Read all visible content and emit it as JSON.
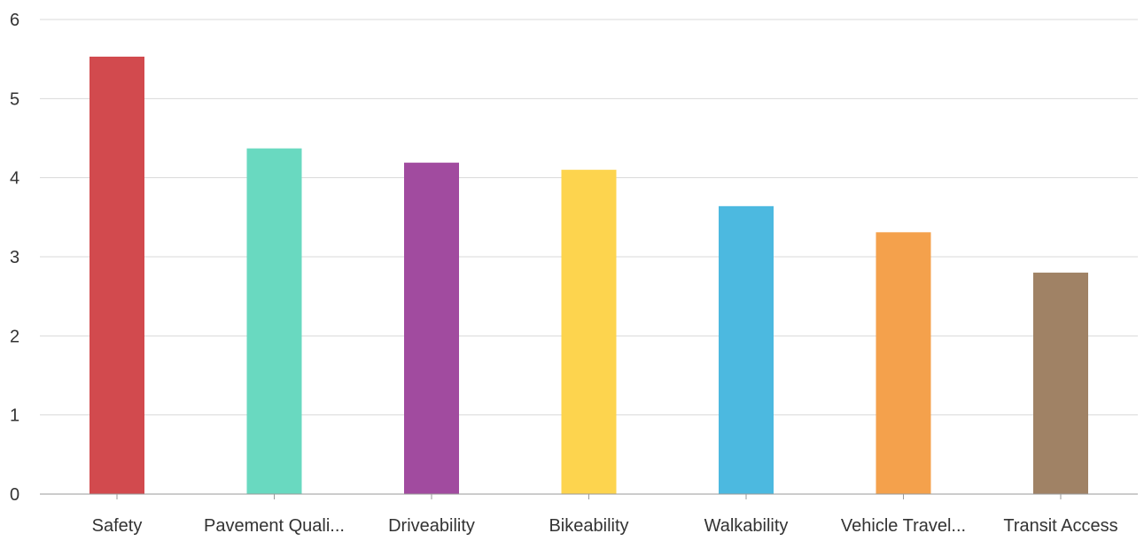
{
  "chart_data": {
    "type": "bar",
    "title": "",
    "xlabel": "",
    "ylabel": "",
    "categories": [
      "Safety",
      "Pavement Quali...",
      "Driveability",
      "Bikeability",
      "Walkability",
      "Vehicle Travel...",
      "Transit Access"
    ],
    "values": [
      5.53,
      4.37,
      4.19,
      4.1,
      3.64,
      3.31,
      2.8
    ],
    "colors": [
      "#d24a4e",
      "#69d9c0",
      "#a14b9f",
      "#fdd44e",
      "#4cb9e0",
      "#f4a14c",
      "#a08265"
    ],
    "ylim": [
      0,
      6
    ],
    "yticks": [
      0,
      1,
      2,
      3,
      4,
      5,
      6
    ],
    "grid": true,
    "legend": "none"
  }
}
